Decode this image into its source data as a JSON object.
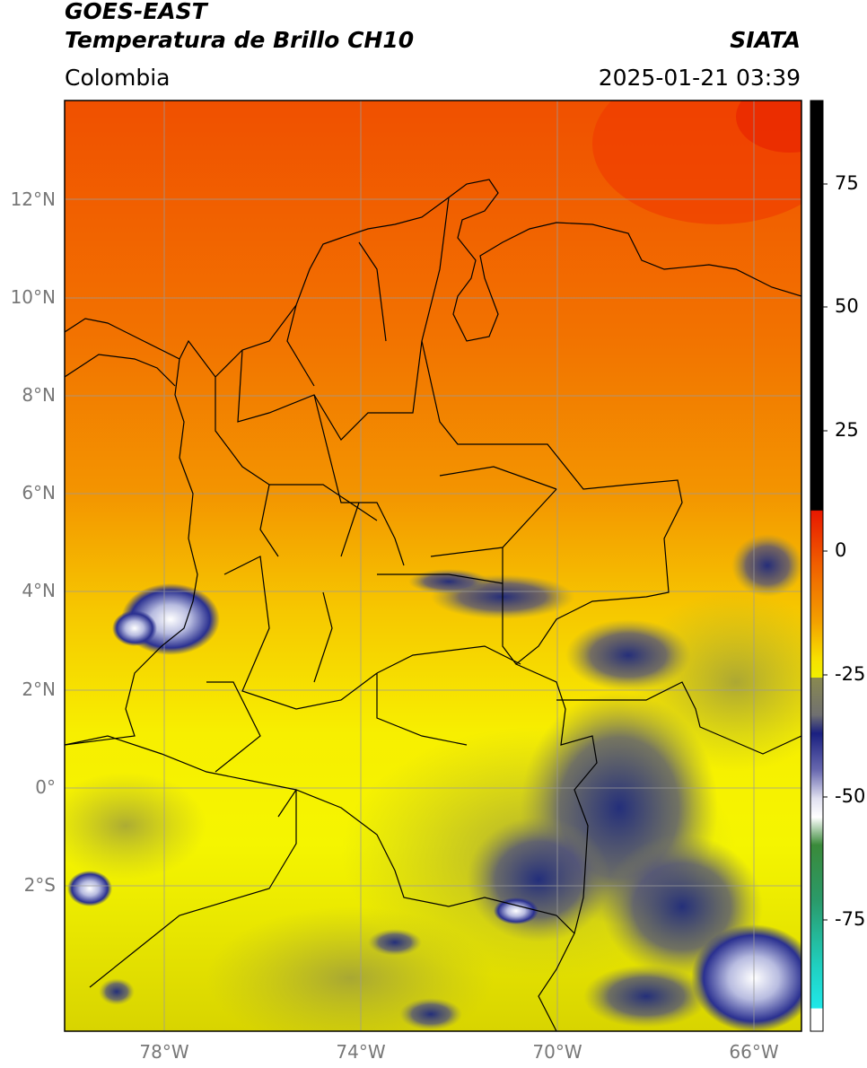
{
  "header": {
    "satellite": "GOES-EAST",
    "product": "Temperatura de Brillo CH10",
    "region": "Colombia",
    "agency": "SIATA",
    "datetime": "2025-01-21 03:39"
  },
  "axes": {
    "lat_labels": [
      "12°N",
      "10°N",
      "8°N",
      "6°N",
      "4°N",
      "2°N",
      "0°",
      "2°S"
    ],
    "lon_labels": [
      "78°W",
      "74°W",
      "70°W",
      "66°W"
    ]
  },
  "colorbar": {
    "ticks": [
      "75",
      "50",
      "25",
      "0",
      "-25",
      "-50",
      "-75"
    ],
    "tick_values": [
      75,
      50,
      25,
      0,
      -25,
      -50,
      -75
    ],
    "range": [
      -95,
      90
    ],
    "colors": {
      "black": "#000000",
      "red": "#e82000",
      "orange": "#f08000",
      "yellow": "#f7f500",
      "olive": "#8a8a40",
      "navy": "#1a2080",
      "white": "#ffffff",
      "green": "#2a8a2a",
      "teal": "#20c0b0",
      "cyan": "#20e0e0"
    }
  }
}
